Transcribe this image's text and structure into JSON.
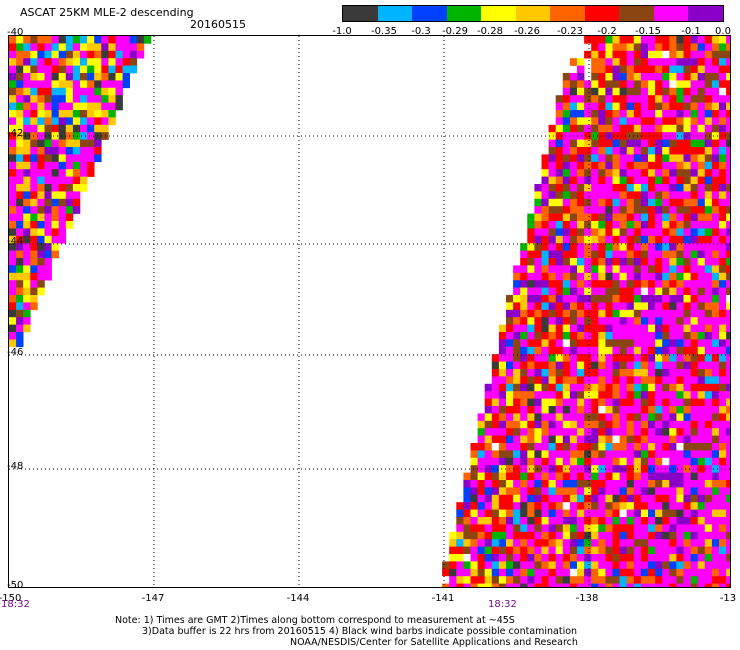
{
  "header": {
    "title": "ASCAT 25KM MLE-2 descending",
    "date": "20160515"
  },
  "colorbar": {
    "labels": [
      "-1.0",
      "-0.35",
      "-0.3",
      "-0.29",
      "-0.28",
      "-0.26",
      "-0.23",
      "-0.2",
      "-0.15",
      "-0.1",
      "0.0"
    ],
    "colors": [
      "#3a3a3a",
      "#00b4ff",
      "#0040ff",
      "#00b400",
      "#ffff00",
      "#ffc800",
      "#ff6400",
      "#ff0000",
      "#8b4513",
      "#ff00ff",
      "#8b00c8"
    ]
  },
  "chart_data": {
    "type": "heatmap",
    "title": "ASCAT 25KM MLE-2 descending",
    "x_ticks": [
      "-150",
      "-147",
      "-144",
      "-141",
      "-138",
      "-13"
    ],
    "y_ticks": [
      "-40",
      "-42",
      "-44",
      "-46",
      "-48",
      "-50"
    ],
    "xlim": [
      -150,
      -135
    ],
    "ylim": [
      -50,
      -40
    ],
    "grid": true,
    "swaths": [
      {
        "description": "western swath edge"
      },
      {
        "description": "eastern swath"
      }
    ]
  },
  "times": {
    "left": "18:32",
    "right": "18:32"
  },
  "notes": {
    "line1": "Note: 1) Times are GMT 2)Times along bottom correspond to measurement at ~45S",
    "line2": "3)Data buffer is 22 hrs from 20160515 4) Black wind barbs indicate possible contamination",
    "line3": "NOAA/NESDIS/Center for Satellite Applications and Research"
  }
}
